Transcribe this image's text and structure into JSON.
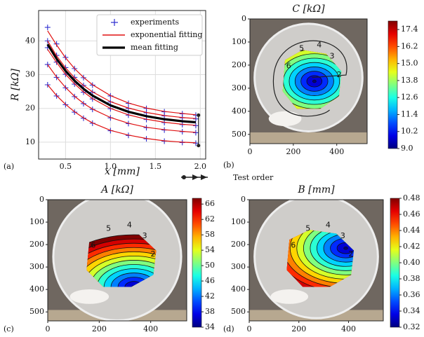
{
  "chart_data": [
    {
      "type": "line",
      "panel_label": "(a)",
      "x_label": "x [mm]",
      "y_label": "R [kΩ]",
      "x": [
        0.3,
        0.4,
        0.5,
        0.6,
        0.7,
        0.8,
        1.0,
        1.2,
        1.4,
        1.6,
        1.8,
        1.95
      ],
      "xlim": [
        0.2,
        2.06
      ],
      "ylim": [
        5,
        49
      ],
      "xticks": [
        0.5,
        {
          "value": 1,
          "label": "1.0"
        },
        1.5,
        {
          "value": 2,
          "label": "2.0"
        }
      ],
      "yticks": [
        10,
        20,
        30,
        40
      ],
      "grid": true,
      "legend": "upper right",
      "series": [
        {
          "name": "experiments",
          "color": "#3030d0",
          "marker": "+",
          "values": [
            [
              44,
              39.1,
              35.1,
              31.8,
              29.1,
              26.9,
              23.7,
              21.5,
              20.0,
              19.0,
              18.4,
              18.0
            ],
            [
              40,
              35.7,
              32.1,
              29.2,
              26.8,
              24.8,
              21.9,
              20.0,
              18.7,
              17.8,
              17.2,
              16.9
            ],
            [
              38,
              33.7,
              30.1,
              27.2,
              24.8,
              22.8,
              19.9,
              18.0,
              16.7,
              15.8,
              15.2,
              14.9
            ],
            [
              33,
              29.2,
              26.1,
              23.5,
              21.4,
              19.7,
              17.2,
              15.5,
              14.3,
              13.6,
              13.1,
              12.8
            ],
            [
              27,
              23.7,
              21.1,
              18.9,
              17.1,
              15.6,
              13.4,
              12.0,
              11.0,
              10.3,
              9.9,
              9.7
            ]
          ]
        },
        {
          "name": "exponential fitting",
          "color": "#e01010",
          "marker": "line",
          "values": [
            [
              43,
              38.8,
              35.0,
              31.8,
              29.2,
              27.0,
              23.8,
              21.6,
              20.1,
              19.1,
              18.5,
              18.1
            ],
            [
              40,
              35.6,
              32.0,
              29.1,
              26.8,
              24.9,
              22.0,
              20.1,
              18.8,
              17.9,
              17.3,
              17.0
            ],
            [
              37.5,
              33.6,
              30.1,
              27.3,
              24.9,
              22.9,
              20.0,
              18.1,
              16.8,
              15.9,
              15.3,
              15.0
            ],
            [
              33,
              29.3,
              26.2,
              23.6,
              21.5,
              19.8,
              17.3,
              15.6,
              14.4,
              13.7,
              13.2,
              12.9
            ],
            [
              27,
              23.8,
              21.2,
              19.0,
              17.2,
              15.7,
              13.5,
              12.1,
              11.1,
              10.4,
              10.0,
              9.8
            ]
          ]
        },
        {
          "name": "mean fitting",
          "color": "#000000",
          "marker": "thick",
          "values": [
            39,
            34.7,
            31.1,
            28.2,
            25.8,
            23.8,
            20.9,
            19.0,
            17.7,
            16.8,
            16.2,
            15.9
          ]
        }
      ]
    },
    {
      "type": "heatmap",
      "title": "C [kΩ]",
      "panel_label": "(b)",
      "xlim": [
        0,
        540
      ],
      "ylim": [
        0,
        540
      ],
      "y_inverted": true,
      "xticks": [
        0,
        200,
        400
      ],
      "yticks": [
        0,
        100,
        200,
        300,
        400,
        500
      ],
      "clim": [
        9,
        18
      ],
      "cticks": [
        {
          "value": 9,
          "label": "9.0"
        },
        10.2,
        11.4,
        12.6,
        13.8,
        {
          "value": 15,
          "label": "15.0"
        },
        16.2,
        17.4
      ],
      "order_labels": [
        2,
        3,
        4,
        5,
        6
      ]
    },
    {
      "type": "heatmap",
      "title": "A [kΩ]",
      "panel_label": "(c)",
      "xlim": [
        0,
        540
      ],
      "ylim": [
        0,
        540
      ],
      "y_inverted": true,
      "xticks": [
        0,
        200,
        400
      ],
      "yticks": [
        0,
        100,
        200,
        300,
        400,
        500
      ],
      "clim": [
        34,
        67.5
      ],
      "cticks": [
        34,
        38,
        42,
        46,
        50,
        54,
        58,
        62,
        66
      ],
      "order_labels": [
        2,
        3,
        4,
        5,
        6
      ]
    },
    {
      "type": "heatmap",
      "title": "B [mm]",
      "panel_label": "(d)",
      "xlim": [
        0,
        540
      ],
      "ylim": [
        0,
        540
      ],
      "y_inverted": true,
      "xticks": [
        0,
        200,
        400
      ],
      "yticks": [
        0,
        100,
        200,
        300,
        400,
        500
      ],
      "clim": [
        0.32,
        0.48
      ],
      "cticks": [
        0.32,
        0.34,
        0.36,
        0.38,
        {
          "value": 0.4,
          "label": "0.40"
        },
        0.42,
        0.44,
        0.46,
        0.48
      ],
      "order_labels": [
        2,
        3,
        4,
        5,
        6
      ]
    }
  ],
  "legend_note": "Test order"
}
